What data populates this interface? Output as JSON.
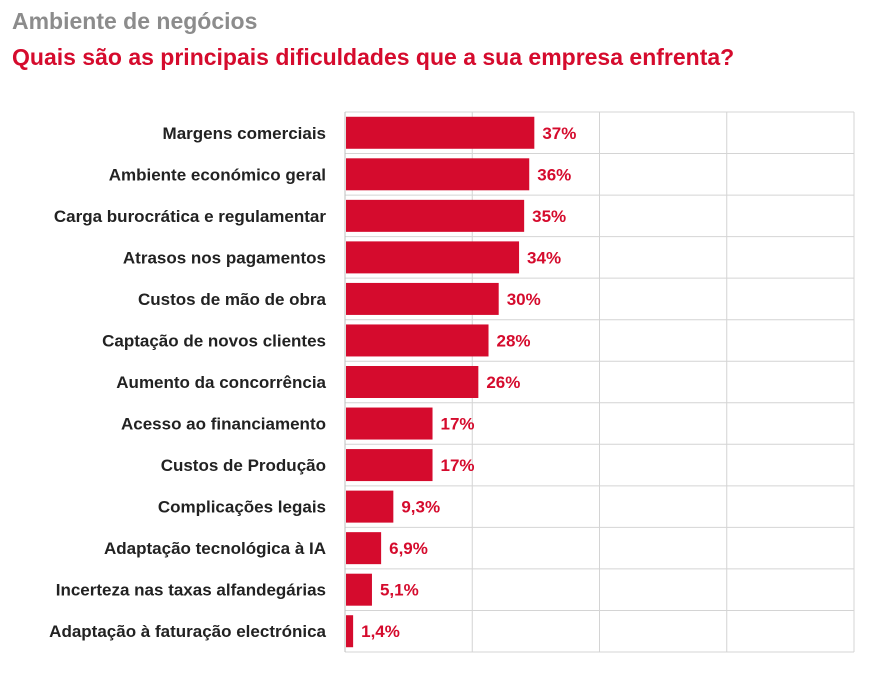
{
  "header": {
    "section": "Ambiente de negócios",
    "title": "Quais são as principais dificuldades que a sua empresa enfrenta?"
  },
  "chart_data": {
    "type": "bar",
    "orientation": "horizontal",
    "title": "Quais são as principais dificuldades que a sua empresa enfrenta?",
    "categories": [
      "Margens comerciais",
      "Ambiente económico geral",
      "Carga burocrática e regulamentar",
      "Atrasos nos pagamentos",
      "Custos de mão de obra",
      "Captação de novos clientes",
      "Aumento da concorrência",
      "Acesso ao financiamento",
      "Custos de Produção",
      "Complicações legais",
      "Adaptação tecnológica à IA",
      "Incerteza nas taxas alfandegárias",
      "Adaptação à faturação electrónica"
    ],
    "values": [
      37,
      36,
      35,
      34,
      30,
      28,
      26,
      17,
      17,
      9.3,
      6.9,
      5.1,
      1.4
    ],
    "value_labels": [
      "37%",
      "36%",
      "35%",
      "34%",
      "30%",
      "28%",
      "26%",
      "17%",
      "17%",
      "9,3%",
      "6,9%",
      "5,1%",
      "1,4%"
    ],
    "xlim": [
      0,
      100
    ],
    "grid": true,
    "bar_color": "#d50b2d",
    "grid_color": "#d4d4d4"
  }
}
